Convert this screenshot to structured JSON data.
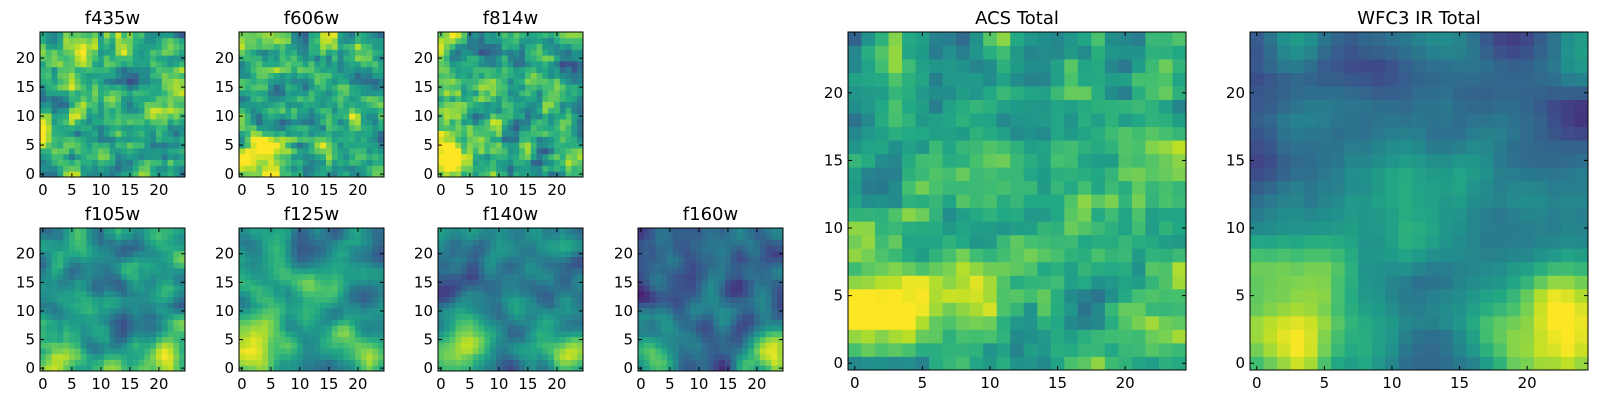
{
  "figure": {
    "description_type": "multi-panel heatmap grid",
    "colormap": "viridis"
  },
  "chart_data": [
    {
      "id": "f435w",
      "type": "heatmap",
      "title": "f435w",
      "xlim": [
        0,
        24
      ],
      "ylim": [
        0,
        24
      ],
      "xticks": [
        0,
        5,
        10,
        15,
        20
      ],
      "yticks": [
        0,
        5,
        10,
        15,
        20
      ],
      "grid": false,
      "seed": 11,
      "smoothness": 0.8,
      "mean": 0.62,
      "noise": 0.28,
      "blobs": [
        {
          "x": 2,
          "y": 3,
          "r": 3,
          "a": 0.15
        },
        {
          "x": 20,
          "y": 17,
          "r": 2,
          "a": 0.2
        }
      ]
    },
    {
      "id": "f606w",
      "type": "heatmap",
      "title": "f606w",
      "xlim": [
        0,
        24
      ],
      "ylim": [
        0,
        24
      ],
      "xticks": [
        0,
        5,
        10,
        15,
        20
      ],
      "yticks": [
        0,
        5,
        10,
        15,
        20
      ],
      "grid": false,
      "seed": 23,
      "smoothness": 0.8,
      "mean": 0.6,
      "noise": 0.25,
      "blobs": [
        {
          "x": 3,
          "y": 2.5,
          "r": 3.5,
          "a": 0.4
        }
      ]
    },
    {
      "id": "f814w",
      "type": "heatmap",
      "title": "f814w",
      "xlim": [
        0,
        24
      ],
      "ylim": [
        0,
        24
      ],
      "xticks": [
        0,
        5,
        10,
        15,
        20
      ],
      "yticks": [
        0,
        5,
        10,
        15,
        20
      ],
      "grid": false,
      "seed": 37,
      "smoothness": 0.8,
      "mean": 0.6,
      "noise": 0.27,
      "blobs": [
        {
          "x": 2,
          "y": 2.5,
          "r": 3.5,
          "a": 0.45
        }
      ]
    },
    {
      "id": "f105w",
      "type": "heatmap",
      "title": "f105w",
      "xlim": [
        0,
        24
      ],
      "ylim": [
        0,
        24
      ],
      "xticks": [
        0,
        5,
        10,
        15,
        20
      ],
      "yticks": [
        0,
        5,
        10,
        15,
        20
      ],
      "grid": false,
      "seed": 41,
      "smoothness": 1.6,
      "mean": 0.5,
      "noise": 0.2,
      "blobs": [
        {
          "x": 2,
          "y": 2,
          "r": 4,
          "a": 0.4
        },
        {
          "x": 22,
          "y": 2,
          "r": 3,
          "a": 0.3
        }
      ]
    },
    {
      "id": "f125w",
      "type": "heatmap",
      "title": "f125w",
      "xlim": [
        0,
        24
      ],
      "ylim": [
        0,
        24
      ],
      "xticks": [
        0,
        5,
        10,
        15,
        20
      ],
      "yticks": [
        0,
        5,
        10,
        15,
        20
      ],
      "grid": false,
      "seed": 53,
      "smoothness": 1.6,
      "mean": 0.5,
      "noise": 0.2,
      "blobs": [
        {
          "x": 2,
          "y": 2,
          "r": 4,
          "a": 0.4
        },
        {
          "x": 22,
          "y": 2,
          "r": 3,
          "a": 0.45
        },
        {
          "x": 13,
          "y": 13,
          "r": 3,
          "a": 0.15
        }
      ]
    },
    {
      "id": "f140w",
      "type": "heatmap",
      "title": "f140w",
      "xlim": [
        0,
        24
      ],
      "ylim": [
        0,
        24
      ],
      "xticks": [
        0,
        5,
        10,
        15,
        20
      ],
      "yticks": [
        0,
        5,
        10,
        15,
        20
      ],
      "grid": false,
      "seed": 67,
      "smoothness": 1.8,
      "mean": 0.42,
      "noise": 0.17,
      "blobs": [
        {
          "x": 2,
          "y": 2,
          "r": 4,
          "a": 0.45
        },
        {
          "x": 22,
          "y": 2,
          "r": 3,
          "a": 0.5
        }
      ]
    },
    {
      "id": "f160w",
      "type": "heatmap",
      "title": "f160w",
      "xlim": [
        0,
        24
      ],
      "ylim": [
        0,
        24
      ],
      "xticks": [
        0,
        5,
        10,
        15,
        20
      ],
      "yticks": [
        0,
        5,
        10,
        15,
        20
      ],
      "grid": false,
      "seed": 79,
      "smoothness": 1.8,
      "mean": 0.3,
      "noise": 0.15,
      "blobs": [
        {
          "x": 2,
          "y": 2,
          "r": 4,
          "a": 0.45
        },
        {
          "x": 22,
          "y": 2,
          "r": 3,
          "a": 0.65
        },
        {
          "x": 12,
          "y": 12,
          "r": 3,
          "a": 0.15
        }
      ]
    },
    {
      "id": "acs-total",
      "type": "heatmap",
      "title": "ACS Total",
      "xlim": [
        0,
        24
      ],
      "ylim": [
        0,
        24
      ],
      "xticks": [
        0,
        5,
        10,
        15,
        20
      ],
      "yticks": [
        0,
        5,
        10,
        15,
        20
      ],
      "grid": false,
      "seed": 97,
      "smoothness": 0.7,
      "mean": 0.6,
      "noise": 0.22,
      "blobs": [
        {
          "x": 2.5,
          "y": 3,
          "r": 3.5,
          "a": 0.45
        },
        {
          "x": 22,
          "y": 2,
          "r": 2.5,
          "a": 0.2
        }
      ]
    },
    {
      "id": "wfc3-ir-total",
      "type": "heatmap",
      "title": "WFC3 IR Total",
      "xlim": [
        0,
        24
      ],
      "ylim": [
        0,
        24
      ],
      "xticks": [
        0,
        5,
        10,
        15,
        20
      ],
      "yticks": [
        0,
        5,
        10,
        15,
        20
      ],
      "grid": false,
      "seed": 113,
      "smoothness": 2.0,
      "mean": 0.34,
      "noise": 0.12,
      "blobs": [
        {
          "x": 2,
          "y": 3,
          "r": 5,
          "a": 0.55
        },
        {
          "x": 22,
          "y": 2,
          "r": 3.5,
          "a": 0.75
        },
        {
          "x": 12,
          "y": 12,
          "r": 4,
          "a": 0.2
        }
      ]
    }
  ]
}
